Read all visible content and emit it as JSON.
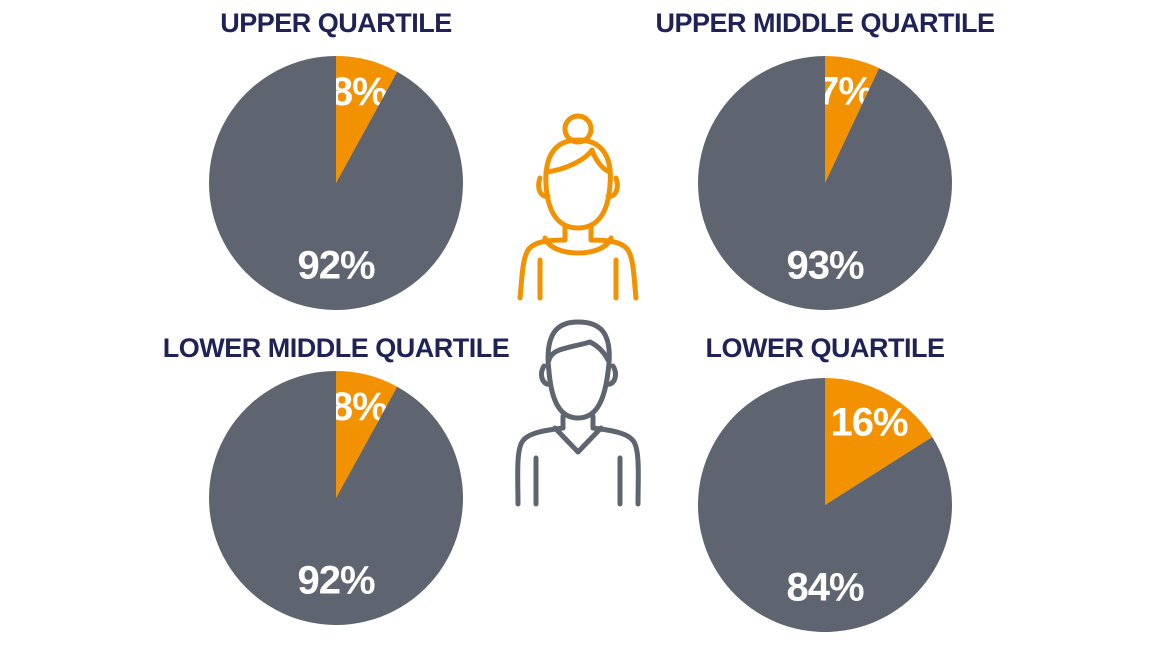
{
  "chart_data": [
    {
      "type": "pie",
      "title": "UPPER QUARTILE",
      "values": [
        8,
        92
      ],
      "value_labels": [
        "8%",
        "92%"
      ],
      "colors": [
        "#f39200",
        "#5f6570"
      ]
    },
    {
      "type": "pie",
      "title": "UPPER MIDDLE QUARTILE",
      "values": [
        7,
        93
      ],
      "value_labels": [
        "7%",
        "93%"
      ],
      "colors": [
        "#f39200",
        "#5f6570"
      ]
    },
    {
      "type": "pie",
      "title": "LOWER MIDDLE QUARTILE",
      "values": [
        8,
        92
      ],
      "value_labels": [
        "8%",
        "92%"
      ],
      "colors": [
        "#f39200",
        "#5f6570"
      ]
    },
    {
      "type": "pie",
      "title": "LOWER QUARTILE",
      "values": [
        16,
        84
      ],
      "value_labels": [
        "16%",
        "84%"
      ],
      "colors": [
        "#f39200",
        "#5f6570"
      ]
    }
  ]
}
